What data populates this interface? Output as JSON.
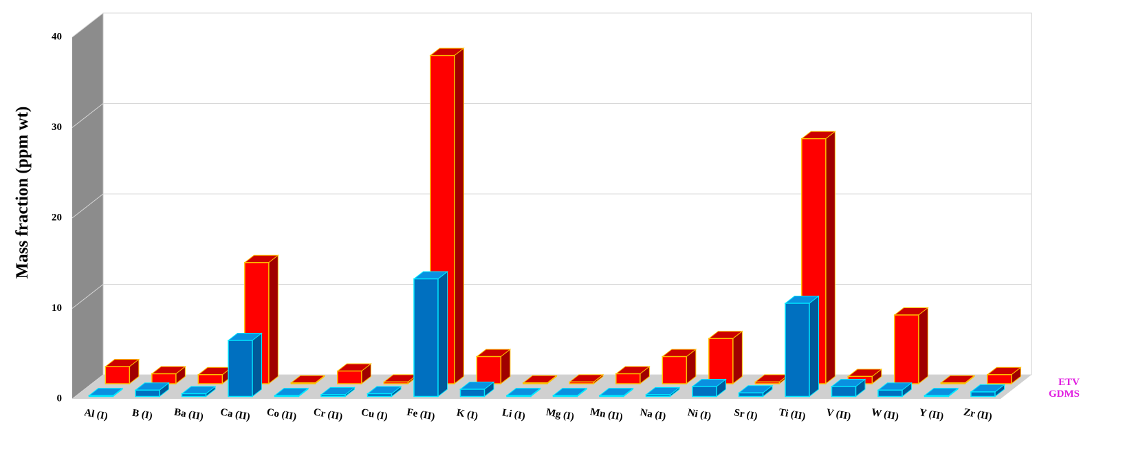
{
  "chart_data": {
    "type": "bar3d",
    "y_label": "Mass fraction (ppm wt)",
    "categories": [
      "Al (I)",
      "B (I)",
      "Ba (II)",
      "Ca (II)",
      "Co (II)",
      "Cr (II)",
      "Cu (I)",
      "Fe (II)",
      "K (I)",
      "Li (I)",
      "Mg (I)",
      "Mn (II)",
      "Na (I)",
      "Ni (I)",
      "Sr (I)",
      "Ti (II)",
      "V (II)",
      "W (II)",
      "Y (II)",
      "Zr (II)"
    ],
    "series": [
      {
        "name": "ETV",
        "color": "#ff0000",
        "values": [
          1.9,
          1.1,
          1.0,
          13.4,
          0.1,
          1.4,
          0.2,
          36.3,
          3.0,
          0.1,
          0.2,
          1.1,
          3.0,
          5.0,
          0.2,
          27.1,
          0.8,
          7.6,
          0.1,
          1.0
        ]
      },
      {
        "name": "GDMS",
        "color": "#0070c0",
        "values": [
          0.1,
          0.7,
          0.3,
          6.2,
          0.1,
          0.2,
          0.3,
          13.0,
          0.8,
          0.1,
          0.1,
          0.1,
          0.2,
          1.1,
          0.4,
          10.3,
          1.1,
          0.7,
          0.1,
          0.5
        ]
      }
    ],
    "ylim": [
      0,
      40
    ],
    "yticks": [
      0,
      10,
      20,
      30,
      40
    ],
    "grid": true
  }
}
